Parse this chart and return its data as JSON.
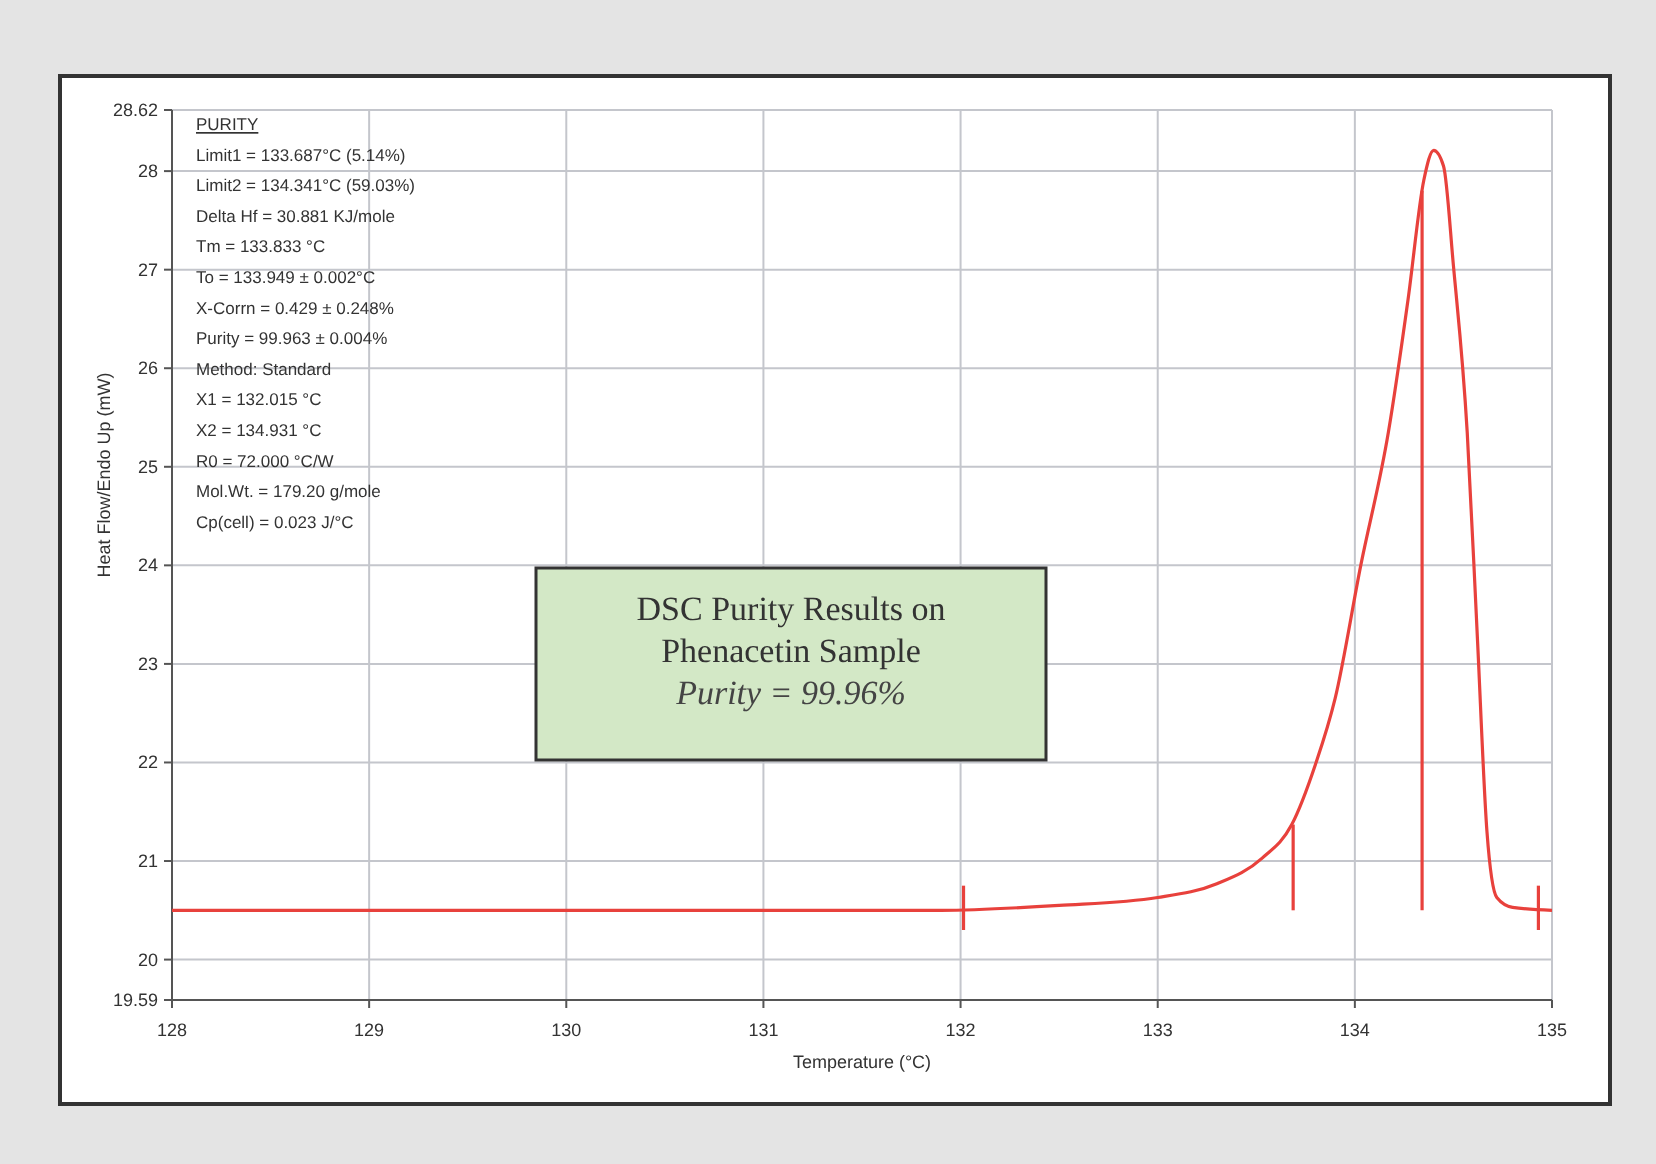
{
  "chart_data": {
    "type": "line",
    "title": "DSC Purity Results on Phenacetin Sample",
    "subtitle": "Purity = 99.96%",
    "xlabel": "Temperature (°C)",
    "ylabel": "Heat Flow/Endo Up (mW)",
    "annotations": [
      "PURITY",
      "Limit1 = 133.687°C (5.14%)",
      "Limit2 = 134.341°C (59.03%)",
      "Delta Hf = 30.881 KJ/mole",
      "Tm = 133.833 °C",
      "To = 133.949 ± 0.002°C",
      "X-Corrn = 0.429 ± 0.248%",
      "Purity = 99.963 ± 0.004%",
      "Method: Standard",
      "X1 = 132.015 °C",
      "X2 = 134.931 °C",
      "R0 = 72.000 °C/W",
      "Mol.Wt. = 179.20 g/mole",
      "Cp(cell) = 0.023 J/°C"
    ],
    "xlim": [
      128,
      135
    ],
    "xticks": [
      128,
      129,
      130,
      131,
      132,
      133,
      134,
      135
    ],
    "ylim": [
      19.59,
      28.62
    ],
    "yticks": [
      19.59,
      20,
      21,
      22,
      23,
      24,
      25,
      26,
      27,
      28,
      28.62
    ],
    "grid": true,
    "series": [
      {
        "color": "#e8413c",
        "x": [
          128,
          131.9,
          132.5,
          133.0,
          133.3,
          133.53,
          133.68,
          133.8,
          133.9,
          134.03,
          134.17,
          134.27,
          134.35,
          134.4,
          134.45,
          134.5,
          134.57,
          134.62,
          134.67,
          134.72,
          134.8,
          135
        ],
        "values": [
          20.5,
          20.5,
          20.55,
          20.63,
          20.77,
          21.03,
          21.37,
          21.98,
          22.65,
          24.0,
          25.35,
          26.7,
          27.91,
          28.21,
          28.05,
          27.04,
          25.35,
          23.33,
          21.3,
          20.63,
          20.53,
          20.5
        ]
      },
      {
        "color": "#e8413c",
        "x": [
          133.687,
          133.687
        ],
        "values": [
          20.5,
          21.37
        ]
      },
      {
        "color": "#e8413c",
        "x": [
          134.341,
          134.341
        ],
        "values": [
          20.5,
          27.8
        ]
      },
      {
        "color": "#e8413c",
        "x": [
          132.015,
          132.015
        ],
        "values": [
          20.3,
          20.75
        ]
      },
      {
        "color": "#e8413c",
        "x": [
          134.931,
          134.931
        ],
        "values": [
          20.3,
          20.75
        ]
      }
    ]
  }
}
